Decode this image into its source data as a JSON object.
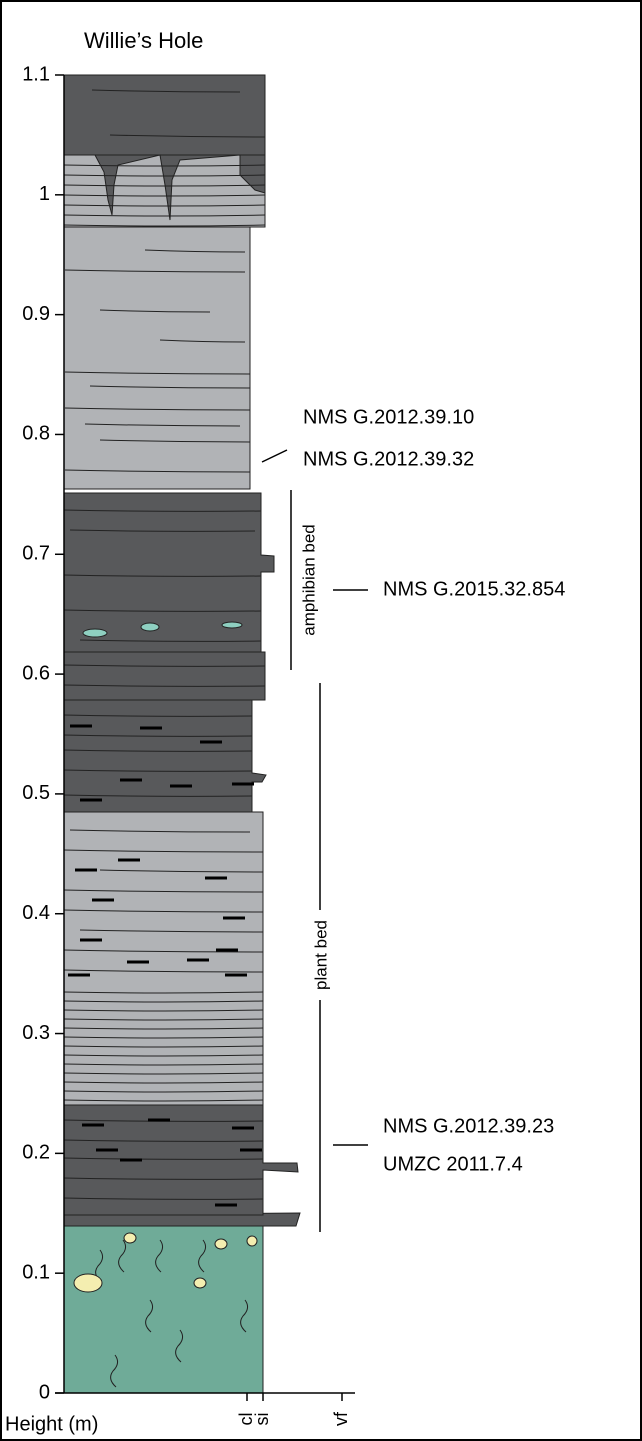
{
  "title": "Willie’s Hole",
  "axis": {
    "label": "Height (m)",
    "ticks": [
      "0",
      "0.1",
      "0.2",
      "0.3",
      "0.4",
      "0.5",
      "0.6",
      "0.7",
      "0.8",
      "0.9",
      "1",
      "1.1"
    ],
    "grain_sizes": [
      "cl",
      "si",
      "vf"
    ]
  },
  "beds": [
    {
      "label": "amphibian bed"
    },
    {
      "label": "plant bed"
    }
  ],
  "specimens": [
    {
      "labels": [
        "NMS G.2012.39.10",
        "NMS G.2012.39.32"
      ]
    },
    {
      "labels": [
        "NMS G.2015.32.854"
      ]
    },
    {
      "labels": [
        "NMS G.2012.39.23",
        "UMZC 2011.7.4"
      ]
    }
  ]
}
